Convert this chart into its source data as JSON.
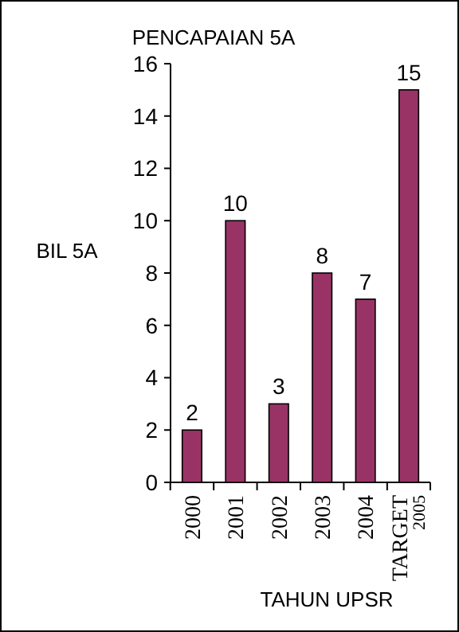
{
  "chart_data": {
    "type": "bar",
    "title": "PENCAPAIAN 5A",
    "xlabel": "TAHUN UPSR",
    "ylabel": "BIL 5A",
    "categories": [
      "2000",
      "2001",
      "2002",
      "2003",
      "2004",
      "TARGET\n2005"
    ],
    "values": [
      2,
      10,
      3,
      8,
      7,
      15
    ],
    "color": "#993366",
    "ylim": [
      0,
      16
    ],
    "yticks": [
      0,
      2,
      4,
      6,
      8,
      10,
      12,
      14,
      16
    ],
    "data_labels": true
  }
}
